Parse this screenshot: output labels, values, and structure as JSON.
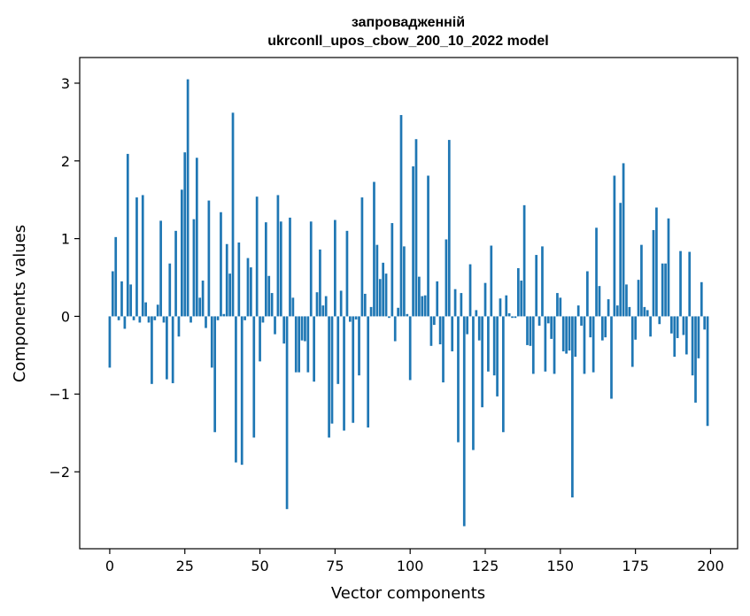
{
  "chart_data": {
    "type": "bar",
    "title": "запровадженній",
    "subtitle": "ukrconll_upos_cbow_200_10_2022 model",
    "xlabel": "Vector components",
    "ylabel": "Components values",
    "xlim": [
      -10,
      209
    ],
    "ylim": [
      -2.99,
      3.33
    ],
    "xticks": [
      0,
      25,
      50,
      75,
      100,
      125,
      150,
      175,
      200
    ],
    "xtick_labels": [
      "0",
      "25",
      "50",
      "75",
      "100",
      "125",
      "150",
      "175",
      "200"
    ],
    "yticks": [
      -2,
      -1,
      0,
      1,
      2,
      3
    ],
    "ytick_labels": [
      "−2",
      "−1",
      "0",
      "1",
      "2",
      "3"
    ],
    "bar_color": "#1f77b4",
    "grid": false,
    "legend": false,
    "values": [
      -0.66,
      0.58,
      1.02,
      -0.05,
      0.45,
      -0.16,
      2.09,
      0.41,
      -0.05,
      1.53,
      -0.08,
      1.56,
      0.18,
      -0.08,
      -0.87,
      -0.05,
      0.15,
      1.23,
      -0.08,
      -0.81,
      0.68,
      -0.86,
      1.1,
      -0.26,
      1.63,
      2.11,
      3.05,
      -0.08,
      1.25,
      2.04,
      0.24,
      0.46,
      -0.15,
      1.49,
      -0.66,
      -1.49,
      -0.05,
      1.34,
      0.03,
      0.93,
      0.55,
      2.62,
      -1.88,
      0.95,
      -1.91,
      -0.05,
      0.75,
      0.63,
      -1.56,
      1.54,
      -0.58,
      -0.08,
      1.21,
      0.52,
      0.3,
      -0.23,
      1.56,
      1.22,
      -0.35,
      -2.48,
      1.27,
      0.24,
      -0.72,
      -0.72,
      -0.31,
      -0.32,
      -0.72,
      1.22,
      -0.84,
      0.31,
      0.86,
      0.14,
      0.26,
      -1.56,
      -1.38,
      1.24,
      -0.87,
      0.33,
      -1.47,
      1.1,
      -0.07,
      -1.37,
      -0.04,
      -0.76,
      1.53,
      0.29,
      -1.43,
      0.12,
      1.73,
      0.92,
      0.48,
      0.69,
      0.55,
      -0.02,
      1.2,
      -0.32,
      0.11,
      2.59,
      0.9,
      0.03,
      -0.82,
      1.93,
      2.28,
      0.51,
      0.26,
      0.27,
      1.81,
      -0.38,
      -0.11,
      0.45,
      -0.36,
      -0.85,
      0.99,
      2.27,
      -0.45,
      0.35,
      -1.62,
      0.3,
      -2.7,
      -0.23,
      0.67,
      -1.72,
      0.08,
      -0.31,
      -1.17,
      0.43,
      -0.71,
      0.91,
      -0.76,
      -1.03,
      0.23,
      -1.49,
      0.27,
      0.04,
      -0.02,
      -0.02,
      0.62,
      0.46,
      1.43,
      -0.37,
      -0.38,
      -0.74,
      0.79,
      -0.12,
      0.9,
      -0.71,
      -0.09,
      -0.29,
      -0.74,
      0.3,
      0.24,
      -0.45,
      -0.48,
      -0.44,
      -2.33,
      -0.52,
      0.14,
      -0.12,
      -0.74,
      0.58,
      -0.27,
      -0.72,
      1.14,
      0.39,
      -0.31,
      -0.27,
      0.22,
      -1.06,
      1.81,
      0.14,
      1.46,
      1.97,
      0.41,
      0.12,
      -0.65,
      -0.3,
      0.47,
      0.92,
      0.12,
      0.08,
      -0.26,
      1.11,
      1.4,
      -0.1,
      0.68,
      0.68,
      1.26,
      -0.22,
      -0.52,
      -0.28,
      0.84,
      -0.24,
      -0.49,
      0.83,
      -0.76,
      -1.11,
      -0.54,
      0.44,
      -0.17,
      -1.41
    ]
  }
}
